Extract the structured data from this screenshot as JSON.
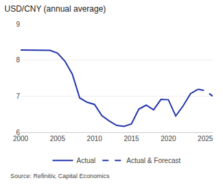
{
  "chart_data": {
    "type": "line",
    "title": "USD/CNY (annual average)",
    "annotations": [
      "Source: Refinitiv, Capital Economics"
    ],
    "x": [
      2000,
      2001,
      2002,
      2003,
      2004,
      2005,
      2006,
      2007,
      2008,
      2009,
      2010,
      2011,
      2012,
      2013,
      2014,
      2015,
      2016,
      2017,
      2018,
      2019,
      2020,
      2021,
      2022,
      2023,
      2024,
      2025,
      2026
    ],
    "series": [
      {
        "name": "Actual",
        "color": "#2233aa",
        "line_style": "solid",
        "values": [
          8.28,
          8.28,
          8.28,
          8.28,
          8.27,
          8.19,
          7.97,
          7.61,
          6.95,
          6.83,
          6.77,
          6.46,
          6.31,
          6.19,
          6.16,
          6.23,
          6.64,
          6.75,
          6.62,
          6.91,
          6.9,
          6.45,
          6.73,
          7.07,
          7.19,
          null,
          null
        ]
      },
      {
        "name": "Actual & Forecast",
        "color": "#2233aa",
        "line_style": "dashed",
        "values": [
          null,
          null,
          null,
          null,
          null,
          null,
          null,
          null,
          null,
          null,
          null,
          null,
          null,
          null,
          null,
          null,
          null,
          null,
          null,
          null,
          null,
          null,
          null,
          null,
          7.19,
          7.15,
          7.0
        ]
      }
    ],
    "xlim": [
      2000,
      2026
    ],
    "xticks": [
      2000,
      2005,
      2010,
      2015,
      2020,
      2025
    ],
    "ylim": [
      6,
      9
    ],
    "yticks": [
      6,
      7,
      8,
      9
    ],
    "grid": "y",
    "legend": "bottom"
  }
}
